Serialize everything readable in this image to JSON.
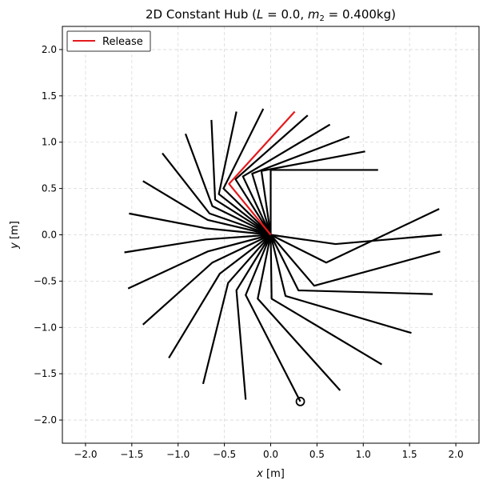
{
  "chart_data": {
    "type": "line",
    "title": "2D Constant Hub (L = 0.0, m₂ = 0.400kg)",
    "title_parts": {
      "prefix": "2D Constant Hub (",
      "L_symbol": "L",
      "L_value": " = 0.0, ",
      "m_symbol": "m",
      "m_subscript": "2",
      "m_value": " = 0.400kg)"
    },
    "xlabel": "x [m]",
    "ylabel": "y [m]",
    "xlabel_symbol": "x",
    "xlabel_unit": " [m]",
    "ylabel_symbol": "y",
    "ylabel_unit": " [m]",
    "xlim": [
      -2.25,
      2.25
    ],
    "ylim": [
      -2.25,
      2.25
    ],
    "xticks": [
      -2.0,
      -1.5,
      -1.0,
      -0.5,
      0.0,
      0.5,
      1.0,
      1.5,
      2.0
    ],
    "yticks": [
      -2.0,
      -1.5,
      -1.0,
      -0.5,
      0.0,
      0.5,
      1.0,
      1.5,
      2.0
    ],
    "xtick_labels": [
      "−2.0",
      "−1.5",
      "−1.0",
      "−0.5",
      "0.0",
      "0.5",
      "1.0",
      "1.5",
      "2.0"
    ],
    "ytick_labels": [
      "−2.0",
      "−1.5",
      "−1.0",
      "−0.5",
      "0.0",
      "0.5",
      "1.0",
      "1.5",
      "2.0"
    ],
    "grid": true,
    "legend": {
      "placement": "top-left",
      "entries": [
        {
          "name": "Release",
          "color": "#e41a1c"
        }
      ]
    },
    "colors": {
      "arm": "#000000",
      "release": "#e41a1c",
      "grid": "#d9d9d9"
    },
    "hub": [
      0.0,
      0.0
    ],
    "arm_poses": [
      {
        "elbow": [
          0.0,
          0.7
        ],
        "tip": [
          1.16,
          0.7
        ]
      },
      {
        "elbow": [
          -0.1,
          0.69
        ],
        "tip": [
          1.02,
          0.9
        ]
      },
      {
        "elbow": [
          -0.2,
          0.66
        ],
        "tip": [
          0.85,
          1.06
        ]
      },
      {
        "elbow": [
          -0.3,
          0.63
        ],
        "tip": [
          0.64,
          1.19
        ]
      },
      {
        "elbow": [
          -0.38,
          0.6
        ],
        "tip": [
          0.4,
          1.29
        ]
      },
      {
        "elbow": [
          -0.45,
          0.55
        ],
        "tip": [
          0.26,
          1.33
        ],
        "release": true
      },
      {
        "elbow": [
          -0.51,
          0.5
        ],
        "tip": [
          -0.08,
          1.36
        ]
      },
      {
        "elbow": [
          -0.56,
          0.44
        ],
        "tip": [
          -0.37,
          1.33
        ]
      },
      {
        "elbow": [
          -0.6,
          0.38
        ],
        "tip": [
          -0.64,
          1.24
        ]
      },
      {
        "elbow": [
          -0.63,
          0.31
        ],
        "tip": [
          -0.92,
          1.09
        ]
      },
      {
        "elbow": [
          -0.66,
          0.23
        ],
        "tip": [
          -1.17,
          0.88
        ]
      },
      {
        "elbow": [
          -0.68,
          0.16
        ],
        "tip": [
          -1.38,
          0.58
        ]
      },
      {
        "elbow": [
          -0.7,
          0.07
        ],
        "tip": [
          -1.53,
          0.23
        ]
      },
      {
        "elbow": [
          -0.7,
          -0.05
        ],
        "tip": [
          -1.58,
          -0.19
        ]
      },
      {
        "elbow": [
          -0.68,
          -0.18
        ],
        "tip": [
          -1.54,
          -0.58
        ]
      },
      {
        "elbow": [
          -0.63,
          -0.3
        ],
        "tip": [
          -1.38,
          -0.97
        ]
      },
      {
        "elbow": [
          -0.55,
          -0.42
        ],
        "tip": [
          -1.1,
          -1.33
        ]
      },
      {
        "elbow": [
          -0.46,
          -0.52
        ],
        "tip": [
          -0.73,
          -1.61
        ]
      },
      {
        "elbow": [
          -0.37,
          -0.6
        ],
        "tip": [
          -0.27,
          -1.78
        ]
      },
      {
        "elbow": [
          -0.27,
          -0.65
        ],
        "tip": [
          0.32,
          -1.8
        ]
      },
      {
        "elbow": [
          -0.14,
          -0.69
        ],
        "tip": [
          0.75,
          -1.68
        ]
      },
      {
        "elbow": [
          0.01,
          -0.69
        ],
        "tip": [
          1.2,
          -1.4
        ]
      },
      {
        "elbow": [
          0.16,
          -0.66
        ],
        "tip": [
          1.52,
          -1.06
        ]
      },
      {
        "elbow": [
          0.3,
          -0.6
        ],
        "tip": [
          1.75,
          -0.64
        ]
      },
      {
        "elbow": [
          0.47,
          -0.55
        ],
        "tip": [
          1.83,
          -0.18
        ]
      },
      {
        "elbow": [
          0.6,
          -0.3
        ],
        "tip": [
          1.82,
          0.28
        ]
      },
      {
        "elbow": [
          0.7,
          -0.1
        ],
        "tip": [
          1.85,
          0.0
        ]
      }
    ],
    "release_segment": {
      "hub": [
        0.0,
        0.0
      ],
      "elbow": [
        -0.45,
        0.55
      ],
      "tip": [
        0.26,
        1.33
      ]
    },
    "end_marker": [
      0.32,
      -1.8
    ]
  }
}
